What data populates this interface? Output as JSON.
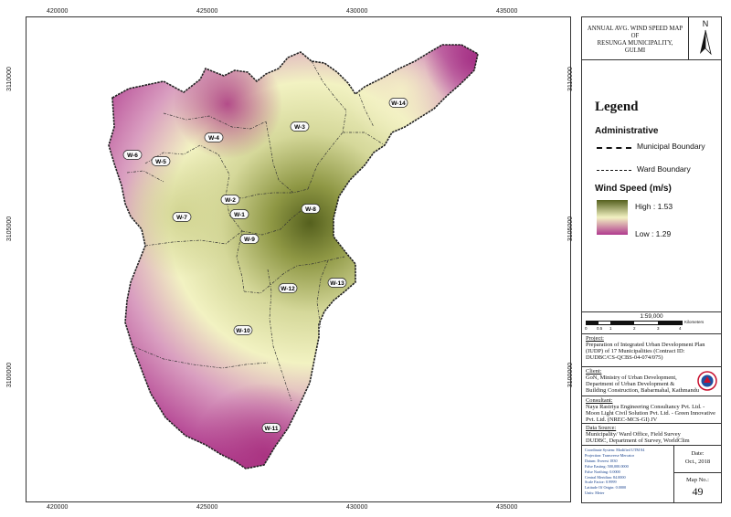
{
  "map": {
    "x_ticks": [
      "420000",
      "425000",
      "430000",
      "435000"
    ],
    "y_ticks": [
      "3110000",
      "3105000",
      "3100000"
    ],
    "wards": [
      "W-14",
      "W-3",
      "W-4",
      "W-6",
      "W-5",
      "W-2",
      "W-1",
      "W-8",
      "W-7",
      "W-9",
      "W-12",
      "W-13",
      "W-10",
      "W-11"
    ]
  },
  "title": {
    "line1": "ANNUAL AVG. WIND SPEED MAP OF",
    "line2": "RESUNGA MUNICIPALITY,",
    "line3": "GULMI",
    "north": "N"
  },
  "legend": {
    "heading": "Legend",
    "administrative": "Administrative",
    "municipal_boundary": "Municipal Boundary",
    "ward_boundary": "Ward Boundary",
    "wind_speed": "Wind Speed (m/s)",
    "high": "High : 1.53",
    "low": "Low : 1.29",
    "colors": {
      "high": "#55601e",
      "mid": "#f2f2c2",
      "low": "#b03a8e"
    }
  },
  "scale": {
    "ratio": "1:59,000",
    "unit": "Kilometers",
    "ticks": [
      "0",
      "0.5",
      "1",
      "2",
      "3",
      "4"
    ]
  },
  "project": {
    "label": "Project:",
    "text": "Preparation of Integrated Urban Development Plan (IUDP) of 17 Municipalities (Contract ID: DUDBC/CS-QCBS-04-074/075)"
  },
  "client": {
    "label": "Client:",
    "line1": "GoN, Ministry of Urban Development,",
    "line2": "Department of Urban Development &",
    "line3": "Building Construction, Babarmahal, Kathmandu"
  },
  "consultant": {
    "label": "Consultant:",
    "text": "Naya Rastriya Engineering Consultancy Pvt. Ltd. - Moon Light Civil Solution Pvt. Ltd. - Green Innovative Pvt. Ltd.  (NREC-MCS-GI) JV"
  },
  "data_source": {
    "label": "Data Source:",
    "line1": "Municipality/ Ward Office, Field Survey",
    "line2": "DUDBC, Department of Survey, WorldClim"
  },
  "coords": {
    "lines": [
      "Coordinate System: Modified UTM 84",
      "Projection: Transverse Mercator",
      "Datum: Everest 1830",
      "False Easting: 500,000.0000",
      "False Northing: 0.0000",
      "Central Meridian: 84.0000",
      "Scale Factor: 0.9999",
      "Latitude Of Origin: 0.0000",
      "Units: Meter"
    ]
  },
  "date": {
    "label": "Date:",
    "value": "Oct., 2018"
  },
  "map_no": {
    "label": "Map No.:",
    "value": "49"
  }
}
